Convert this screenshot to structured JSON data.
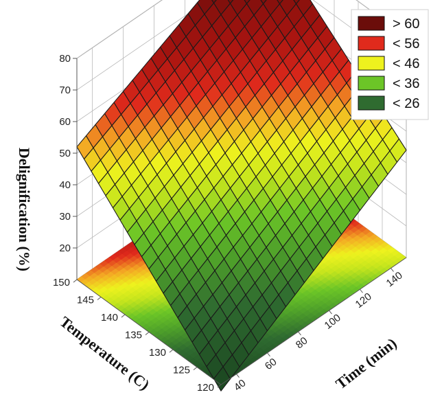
{
  "chart_data": {
    "type": "surface3d",
    "title": "",
    "xlabel": "Time (min)",
    "ylabel": "Temperature (C)",
    "zlabel": "Delignification (%)",
    "x_ticks": [
      40,
      60,
      80,
      100,
      120,
      140
    ],
    "y_ticks": [
      120,
      125,
      130,
      135,
      140,
      145,
      150
    ],
    "z_ticks": [
      20,
      30,
      40,
      50,
      60,
      70,
      80
    ],
    "xlim": [
      30,
      150
    ],
    "ylim": [
      120,
      150
    ],
    "zlim": [
      10,
      80
    ],
    "surface_corners": {
      "time_min_temp_min": 8,
      "time_max_temp_min": 44,
      "time_min_temp_max": 52,
      "time_max_temp_max": 82
    },
    "legend": {
      "position": "top-right",
      "entries": [
        {
          "label": "> 60",
          "color": "#6b0d0a"
        },
        {
          "label": "< 56",
          "color": "#e02a1c"
        },
        {
          "label": "< 46",
          "color": "#eef21e"
        },
        {
          "label": "< 36",
          "color": "#6cc527"
        },
        {
          "label": "< 26",
          "color": "#2f6b30"
        }
      ]
    },
    "grid": true
  }
}
